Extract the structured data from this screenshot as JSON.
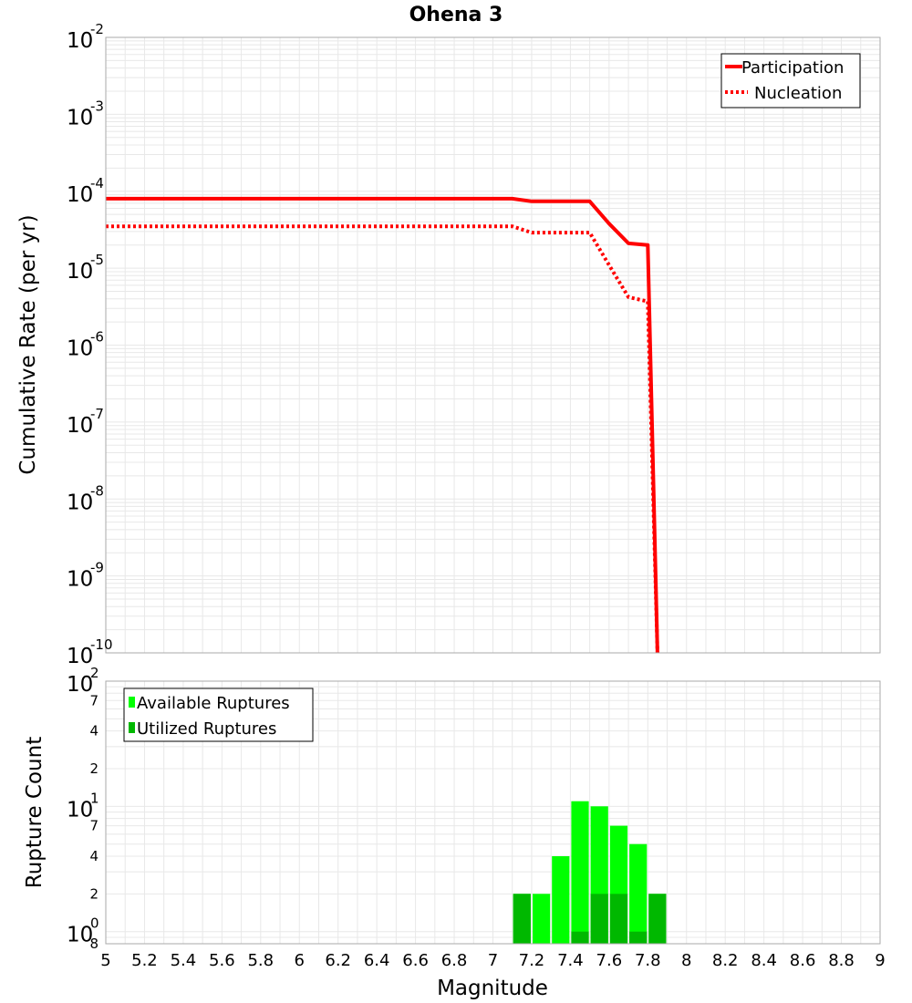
{
  "chart_title": "Ohena 3",
  "colors": {
    "participation": "#ff0000",
    "nucleation": "#ff0000",
    "available": "#00ff00",
    "utilized": "#00b800",
    "grid": "#e8e8e8",
    "frame": "#aaaaaa"
  },
  "chart_data": [
    {
      "type": "line",
      "title": "Ohena 3",
      "xlabel": "Magnitude",
      "ylabel": "Cumulative Rate (per yr)",
      "xlim": [
        5,
        9
      ],
      "ylim": [
        1e-10,
        0.01
      ],
      "yscale": "log",
      "grid": true,
      "legend_position": "top-right",
      "y_ticks": [
        {
          "base": "10",
          "exp": "-2"
        },
        {
          "base": "10",
          "exp": "-3"
        },
        {
          "base": "10",
          "exp": "-4"
        },
        {
          "base": "10",
          "exp": "-5"
        },
        {
          "base": "10",
          "exp": "-6"
        },
        {
          "base": "10",
          "exp": "-7"
        },
        {
          "base": "10",
          "exp": "-8"
        },
        {
          "base": "10",
          "exp": "-9"
        },
        {
          "base": "10",
          "exp": "-10"
        }
      ],
      "series": [
        {
          "name": "Participation",
          "style": "solid",
          "x": [
            5.0,
            7.1,
            7.2,
            7.3,
            7.4,
            7.5,
            7.6,
            7.7,
            7.8,
            7.85
          ],
          "values": [
            8e-05,
            8e-05,
            7.4e-05,
            7.4e-05,
            7.4e-05,
            7.4e-05,
            3.8e-05,
            2.1e-05,
            2e-05,
            1e-10
          ]
        },
        {
          "name": "Nucleation",
          "style": "dotted",
          "x": [
            5.0,
            7.1,
            7.2,
            7.3,
            7.4,
            7.5,
            7.6,
            7.7,
            7.8,
            7.85
          ],
          "values": [
            3.5e-05,
            3.5e-05,
            2.9e-05,
            2.9e-05,
            2.9e-05,
            2.9e-05,
            1.1e-05,
            4.2e-06,
            3.7e-06,
            1e-10
          ]
        }
      ]
    },
    {
      "type": "bar",
      "xlabel": "Magnitude",
      "ylabel": "Rupture Count",
      "xlim": [
        5,
        9
      ],
      "ylim": [
        0.8,
        100
      ],
      "yscale": "log",
      "grid": true,
      "legend_position": "top-left",
      "x_ticks": [
        "5",
        "5.2",
        "5.4",
        "5.6",
        "5.8",
        "6",
        "6.2",
        "6.4",
        "6.6",
        "6.8",
        "7",
        "7.2",
        "7.4",
        "7.6",
        "7.8",
        "8",
        "8.2",
        "8.4",
        "8.6",
        "8.8",
        "9"
      ],
      "y_ticks": [
        {
          "base": "10",
          "exp": "2",
          "value": 100
        },
        {
          "label": "7",
          "value": 70
        },
        {
          "label": "4",
          "value": 40
        },
        {
          "label": "2",
          "value": 20
        },
        {
          "base": "10",
          "exp": "1",
          "value": 10
        },
        {
          "label": "7",
          "value": 7
        },
        {
          "label": "4",
          "value": 4
        },
        {
          "label": "2",
          "value": 2
        },
        {
          "base": "10",
          "exp": "0",
          "value": 1
        },
        {
          "label": "8",
          "value": 0.8
        }
      ],
      "bin_width": 0.1,
      "series": [
        {
          "name": "Available Ruptures",
          "x": [
            7.15,
            7.25,
            7.35,
            7.45,
            7.55,
            7.65,
            7.75,
            7.85
          ],
          "values": [
            2,
            2,
            4,
            11,
            10,
            7,
            5,
            2
          ]
        },
        {
          "name": "Utilized Ruptures",
          "x": [
            7.15,
            7.25,
            7.35,
            7.45,
            7.55,
            7.65,
            7.75,
            7.85
          ],
          "values": [
            2,
            0,
            0,
            1,
            2,
            2,
            1,
            2
          ]
        }
      ]
    }
  ]
}
